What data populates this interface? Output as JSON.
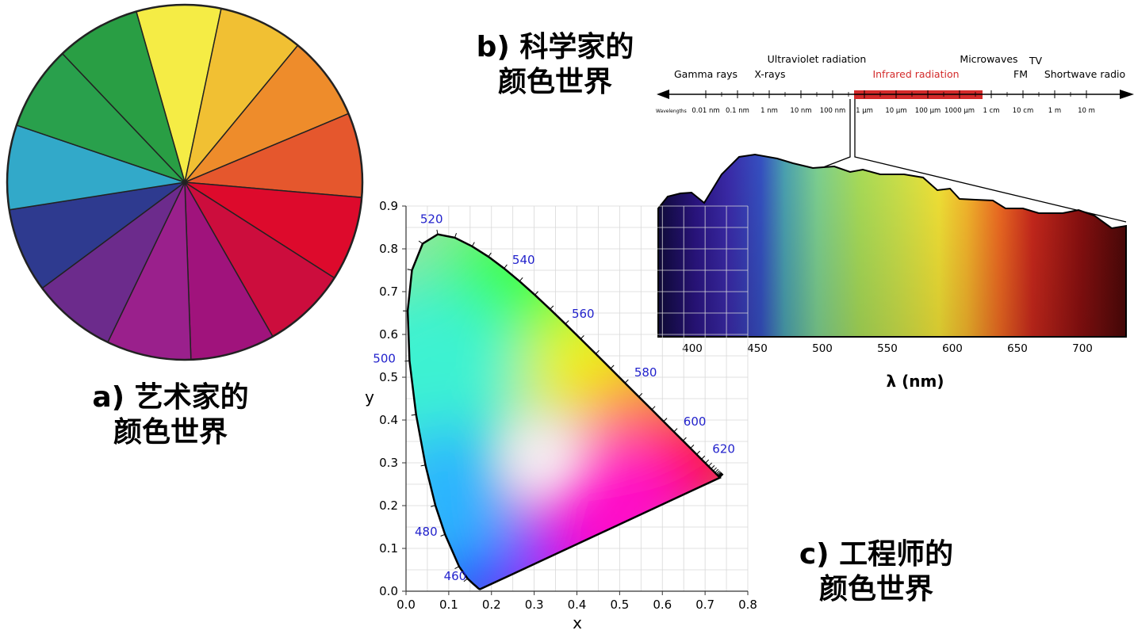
{
  "panels": {
    "a": {
      "label": "a) 艺术家的",
      "label2": "颜色世界"
    },
    "b": {
      "label": "b) 科学家的",
      "label2": "颜色世界"
    },
    "c": {
      "label": "c) 工程师的",
      "label2": "颜色世界"
    }
  },
  "color_wheel": {
    "segments": [
      "#f5ec45",
      "#f1c033",
      "#ee8c2b",
      "#e5572d",
      "#dd0a2c",
      "#cc0d3d",
      "#a0137c",
      "#9a208c",
      "#6c2b8c",
      "#2e3a8f",
      "#32a9c9",
      "#29a04c",
      "#299e44"
    ]
  },
  "spectrum": {
    "bands_top": [
      "Ultraviolet radiation",
      "Microwaves",
      "TV"
    ],
    "bands_bottom": [
      "Gamma rays",
      "X-rays",
      "Infrared radiation",
      "FM",
      "Shortwave radio"
    ],
    "wavelengths_label": "Wavelengths",
    "scale_ticks": [
      "0.01 nm",
      "0.1 nm",
      "1 nm",
      "10 nm",
      "100 nm",
      "1 μm",
      "10 μm",
      "100 μm",
      "1000 μm",
      "1 cm",
      "10 cm",
      "1 m",
      "10 m"
    ],
    "highlight_color": "#d32a2a"
  },
  "visible_spectrum": {
    "x_ticks": [
      "400",
      "450",
      "500",
      "550",
      "600",
      "650",
      "700"
    ],
    "xlabel": "λ (nm)"
  },
  "chart_data": {
    "type": "scatter",
    "title": "",
    "xlabel": "x",
    "ylabel": "y",
    "xlim": [
      0,
      0.8
    ],
    "ylim": [
      0,
      0.9
    ],
    "x_ticks": [
      "0.0",
      "0.1",
      "0.2",
      "0.3",
      "0.4",
      "0.5",
      "0.6",
      "0.7",
      "0.8"
    ],
    "y_ticks": [
      "0.0",
      "0.1",
      "0.2",
      "0.3",
      "0.4",
      "0.5",
      "0.6",
      "0.7",
      "0.8",
      "0.9"
    ],
    "grid": true,
    "wavelength_labels": [
      {
        "label": "460",
        "x": 0.144,
        "y": 0.03
      },
      {
        "label": "480",
        "x": 0.091,
        "y": 0.133
      },
      {
        "label": "500",
        "x": 0.008,
        "y": 0.538
      },
      {
        "label": "520",
        "x": 0.074,
        "y": 0.834
      },
      {
        "label": "540",
        "x": 0.23,
        "y": 0.754
      },
      {
        "label": "560",
        "x": 0.373,
        "y": 0.624
      },
      {
        "label": "580",
        "x": 0.512,
        "y": 0.487
      },
      {
        "label": "600",
        "x": 0.627,
        "y": 0.372
      },
      {
        "label": "620",
        "x": 0.691,
        "y": 0.308
      }
    ],
    "locus": [
      [
        0.1741,
        0.005
      ],
      [
        0.1738,
        0.0049
      ],
      [
        0.1733,
        0.0048
      ],
      [
        0.1726,
        0.0048
      ],
      [
        0.1714,
        0.0051
      ],
      [
        0.1689,
        0.0069
      ],
      [
        0.1644,
        0.0109
      ],
      [
        0.1566,
        0.0177
      ],
      [
        0.144,
        0.0297
      ],
      [
        0.1241,
        0.0578
      ],
      [
        0.0913,
        0.1327
      ],
      [
        0.0687,
        0.2007
      ],
      [
        0.0454,
        0.295
      ],
      [
        0.0235,
        0.4127
      ],
      [
        0.0082,
        0.5384
      ],
      [
        0.0039,
        0.6548
      ],
      [
        0.0139,
        0.7502
      ],
      [
        0.0389,
        0.812
      ],
      [
        0.0743,
        0.8338
      ],
      [
        0.1142,
        0.8262
      ],
      [
        0.1547,
        0.8059
      ],
      [
        0.1929,
        0.7816
      ],
      [
        0.2296,
        0.7543
      ],
      [
        0.2658,
        0.7243
      ],
      [
        0.3016,
        0.6923
      ],
      [
        0.3373,
        0.6589
      ],
      [
        0.3731,
        0.6245
      ],
      [
        0.4087,
        0.5896
      ],
      [
        0.4441,
        0.5547
      ],
      [
        0.4788,
        0.5202
      ],
      [
        0.5125,
        0.4866
      ],
      [
        0.5448,
        0.4544
      ],
      [
        0.5752,
        0.4242
      ],
      [
        0.6029,
        0.3965
      ],
      [
        0.627,
        0.3725
      ],
      [
        0.6482,
        0.3514
      ],
      [
        0.6658,
        0.334
      ],
      [
        0.6801,
        0.3197
      ],
      [
        0.6915,
        0.3083
      ],
      [
        0.7006,
        0.2993
      ],
      [
        0.7079,
        0.292
      ],
      [
        0.714,
        0.2859
      ],
      [
        0.719,
        0.2809
      ],
      [
        0.723,
        0.277
      ],
      [
        0.726,
        0.274
      ],
      [
        0.7283,
        0.2717
      ],
      [
        0.73,
        0.27
      ],
      [
        0.7311,
        0.2689
      ],
      [
        0.732,
        0.268
      ],
      [
        0.7327,
        0.2673
      ],
      [
        0.7334,
        0.2666
      ],
      [
        0.734,
        0.266
      ],
      [
        0.7344,
        0.2656
      ],
      [
        0.7346,
        0.2654
      ],
      [
        0.7347,
        0.2653
      ]
    ]
  }
}
